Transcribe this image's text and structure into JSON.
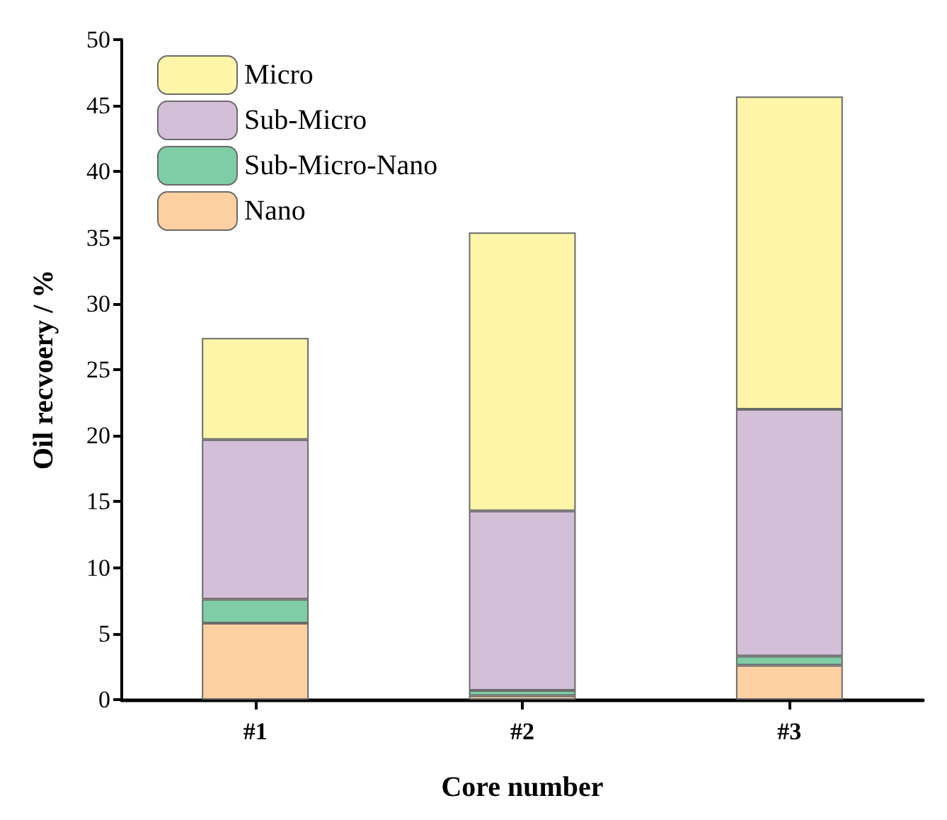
{
  "chart_data": {
    "type": "bar",
    "stacked": true,
    "xlabel": "Core number",
    "ylabel": "Oil recvoery / %",
    "categories": [
      "#1",
      "#2",
      "#3"
    ],
    "series": [
      {
        "name": "Nano",
        "color": "#fdd0a2",
        "values": [
          5.8,
          0.3,
          2.6
        ]
      },
      {
        "name": "Sub-Micro-Nano",
        "color": "#7fcda4",
        "values": [
          1.8,
          0.4,
          0.7
        ]
      },
      {
        "name": "Sub-Micro",
        "color": "#d4bfd9",
        "values": [
          12.1,
          13.6,
          18.7
        ]
      },
      {
        "name": "Micro",
        "color": "#fff5a8",
        "values": [
          7.7,
          21.1,
          23.7
        ]
      }
    ],
    "ylim": [
      0,
      50
    ],
    "yticks": [
      0,
      5,
      10,
      15,
      20,
      25,
      30,
      35,
      40,
      45,
      50
    ],
    "legend": "top left",
    "grid": false
  }
}
